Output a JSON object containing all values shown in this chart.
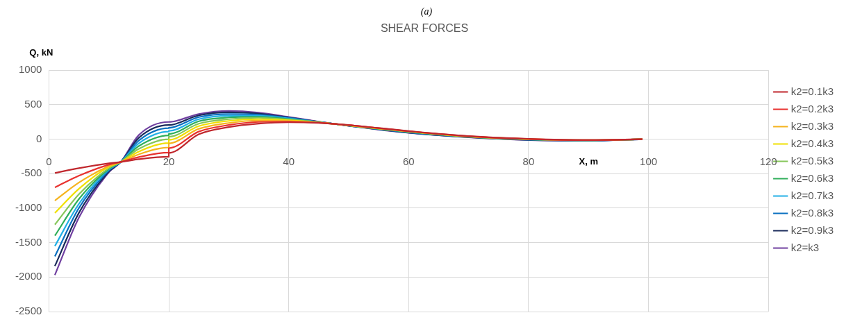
{
  "chart_data": {
    "type": "line",
    "title": "SHEAR FORCES",
    "xlabel": "X, m",
    "ylabel": "Q, kN",
    "annotations": [
      "(a)"
    ],
    "x": [
      1,
      5,
      10,
      12,
      15,
      20,
      20,
      25,
      30,
      35,
      40,
      45,
      50,
      60,
      70,
      80,
      90,
      99
    ],
    "xlim": [
      0,
      120
    ],
    "xticks": [
      0,
      20,
      40,
      60,
      80,
      100,
      120
    ],
    "ylim": [
      -2500,
      1000
    ],
    "yticks": [
      -2500,
      -2000,
      -1500,
      -1000,
      -500,
      0,
      500,
      1000
    ],
    "grid": true,
    "legend": "right",
    "marker": "none",
    "line_style": "solid",
    "series": [
      {
        "name": "k2=0.1k3",
        "color": "#c0272d",
        "values": [
          -490,
          -420,
          -350,
          -330,
          -290,
          -255,
          -200,
          70,
          175,
          225,
          245,
          235,
          205,
          118,
          45,
          5,
          -12,
          0
        ]
      },
      {
        "name": "k2=0.2k3",
        "color": "#e8322f",
        "values": [
          -700,
          -530,
          -370,
          -330,
          -260,
          -195,
          -130,
          110,
          205,
          250,
          255,
          238,
          203,
          116,
          43,
          3,
          -13,
          0
        ]
      },
      {
        "name": "k2=0.3k3",
        "color": "#f5b31e",
        "values": [
          -890,
          -630,
          -390,
          -330,
          -220,
          -120,
          -60,
          150,
          235,
          270,
          265,
          240,
          202,
          114,
          41,
          2,
          -14,
          0
        ]
      },
      {
        "name": "k2=0.4k3",
        "color": "#f0e000",
        "values": [
          -1070,
          -720,
          -400,
          -330,
          -180,
          -55,
          -10,
          190,
          265,
          290,
          275,
          242,
          200,
          112,
          39,
          0,
          null,
          null
        ]
      },
      {
        "name": "k2=0.5k3",
        "color": "#86c65a",
        "values": [
          -1240,
          -800,
          -420,
          -330,
          -140,
          0,
          35,
          225,
          290,
          310,
          283,
          244,
          199,
          110,
          37,
          -2,
          -16,
          0
        ]
      },
      {
        "name": "k2=0.6k3",
        "color": "#2fae5a",
        "values": [
          -1400,
          -870,
          -430,
          -330,
          -100,
          55,
          75,
          260,
          315,
          325,
          292,
          246,
          198,
          106,
          35,
          -4,
          -17,
          0
        ]
      },
      {
        "name": "k2=0.7k3",
        "color": "#22b0e6",
        "values": [
          -1550,
          -940,
          -440,
          -330,
          -60,
          110,
          120,
          290,
          340,
          340,
          300,
          248,
          197,
          null,
          null,
          null,
          null,
          null
        ]
      },
      {
        "name": "k2=0.8k3",
        "color": "#0a70c0",
        "values": [
          -1700,
          -1000,
          -455,
          -330,
          -20,
          160,
          165,
          320,
          365,
          355,
          308,
          250,
          196,
          98,
          31,
          -8,
          -19,
          0
        ]
      },
      {
        "name": "k2=0.9k3",
        "color": "#1a2a5a",
        "values": [
          -1840,
          -1070,
          -470,
          -330,
          20,
          205,
          205,
          345,
          390,
          370,
          315,
          252,
          195,
          95,
          29,
          -10,
          -20,
          0
        ]
      },
      {
        "name": "k2=k3",
        "color": "#7040a0",
        "values": [
          -1970,
          -1140,
          -480,
          -330,
          60,
          250,
          250,
          365,
          410,
          385,
          322,
          255,
          194,
          92,
          27,
          -12,
          -20,
          0
        ]
      }
    ]
  }
}
